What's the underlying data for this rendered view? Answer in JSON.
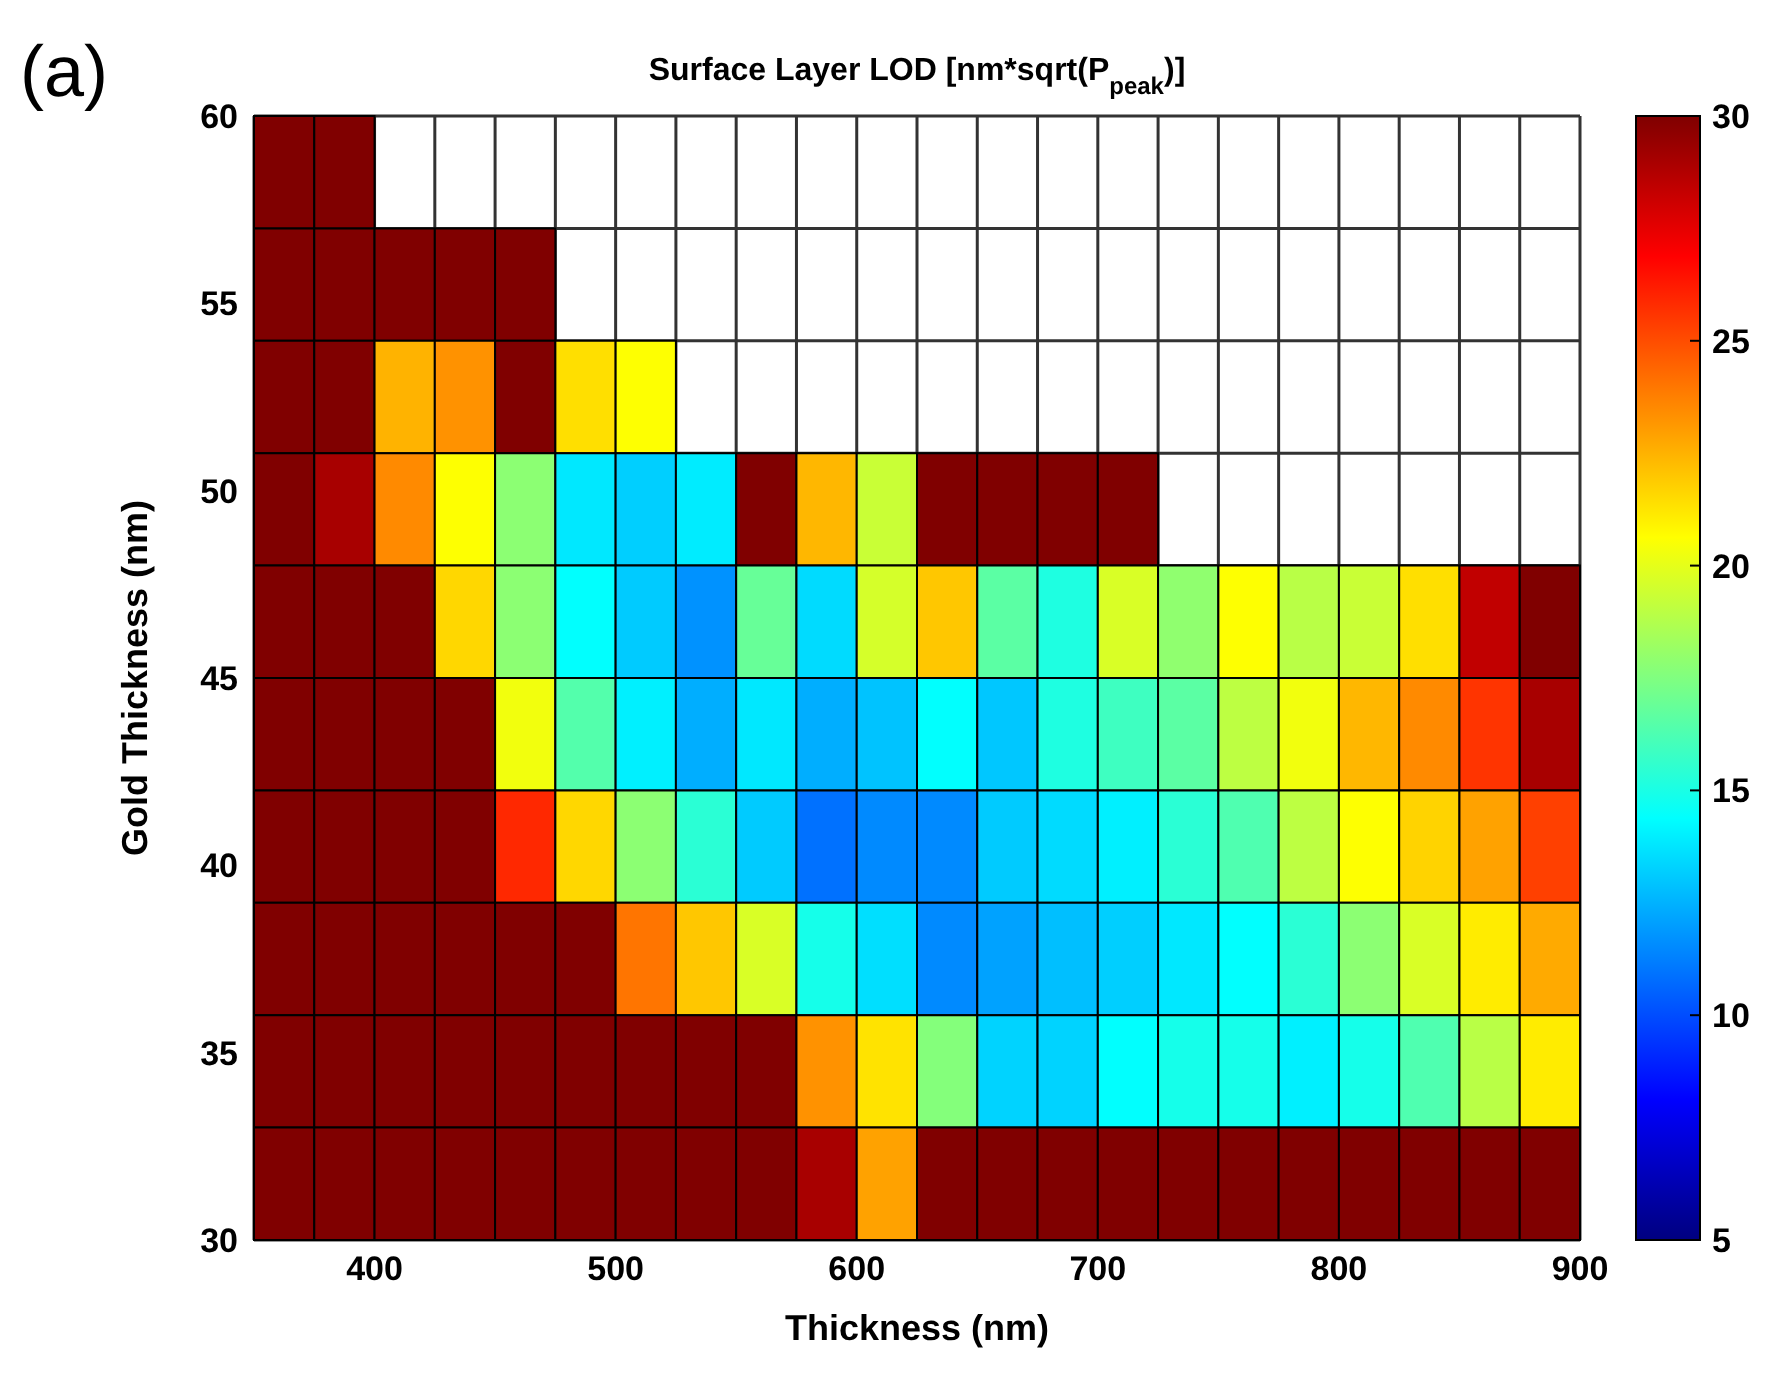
{
  "chart_data": {
    "type": "heatmap",
    "title": "Surface Layer LOD [nm*sqrt(P$_{peak}$)]",
    "annotations": [
      "(a)"
    ],
    "xlabel": "Thickness (nm)",
    "ylabel": "Gold Thickness (nm)",
    "x": [
      362.5,
      387.5,
      412.5,
      437.5,
      462.5,
      487.5,
      512.5,
      537.5,
      562.5,
      587.5,
      612.5,
      637.5,
      662.5,
      687.5,
      712.5,
      737.5,
      762.5,
      787.5,
      812.5,
      837.5,
      862.5,
      887.5
    ],
    "xlim": [
      350,
      900
    ],
    "xticks": [
      400,
      500,
      600,
      700,
      800,
      900
    ],
    "ylim": [
      30,
      60
    ],
    "yticks": [
      30,
      35,
      40,
      45,
      50,
      55,
      60
    ],
    "grid": true,
    "clim": [
      5,
      30
    ],
    "cticks": [
      5,
      10,
      15,
      20,
      25,
      30
    ],
    "cells": [
      [
        30,
        30,
        null,
        null,
        null,
        null,
        null,
        null,
        null,
        null,
        null,
        null,
        null,
        null,
        null,
        null,
        null,
        null,
        null,
        null,
        null,
        null
      ],
      [
        30,
        30,
        30,
        30,
        30,
        null,
        null,
        null,
        null,
        null,
        null,
        null,
        null,
        null,
        null,
        null,
        null,
        null,
        null,
        null,
        null,
        null
      ],
      [
        30,
        30,
        22.5,
        23.3,
        30,
        21.4,
        20.6,
        null,
        null,
        null,
        null,
        null,
        null,
        null,
        null,
        null,
        null,
        null,
        null,
        null,
        null,
        null
      ],
      [
        30,
        29,
        23.5,
        20.6,
        17.8,
        13.8,
        13.2,
        13.9,
        30,
        22.4,
        19.3,
        30,
        30,
        30,
        30,
        null,
        null,
        null,
        null,
        null,
        null,
        null
      ],
      [
        30,
        30,
        30,
        21.6,
        17.8,
        14.4,
        13.1,
        11.7,
        16.9,
        13.5,
        19.6,
        22,
        16.6,
        15.1,
        19.7,
        17.9,
        20.6,
        18.9,
        19.3,
        21.4,
        28.4,
        30
      ],
      [
        30,
        30,
        30,
        30,
        20.3,
        16.4,
        14,
        12.4,
        13.8,
        12.4,
        12.9,
        14.4,
        13,
        15.1,
        15.9,
        16.6,
        19,
        20.3,
        22.4,
        23.5,
        25.6,
        29
      ],
      [
        30,
        30,
        30,
        30,
        25.9,
        21.6,
        17.8,
        15.4,
        13.1,
        10.9,
        11.5,
        11.5,
        13.1,
        13.5,
        14,
        15.4,
        16.3,
        19,
        20.6,
        21.7,
        22.9,
        25.3
      ],
      [
        30,
        30,
        30,
        30,
        30,
        30,
        24,
        22,
        19.7,
        14.9,
        13.6,
        11.5,
        12.1,
        12.8,
        13.2,
        13.8,
        14.4,
        15.4,
        17.8,
        19.7,
        21.1,
        22.7
      ],
      [
        30,
        30,
        30,
        30,
        30,
        30,
        30,
        30,
        30,
        23.3,
        21.3,
        17.6,
        13.3,
        13.3,
        14.4,
        14.9,
        14.9,
        14,
        14.9,
        16.3,
        18.9,
        21.1
      ],
      [
        30,
        30,
        30,
        30,
        30,
        30,
        30,
        30,
        30,
        29,
        22.9,
        30,
        30,
        30,
        30,
        30,
        30,
        30,
        30,
        30,
        30,
        30
      ]
    ]
  }
}
